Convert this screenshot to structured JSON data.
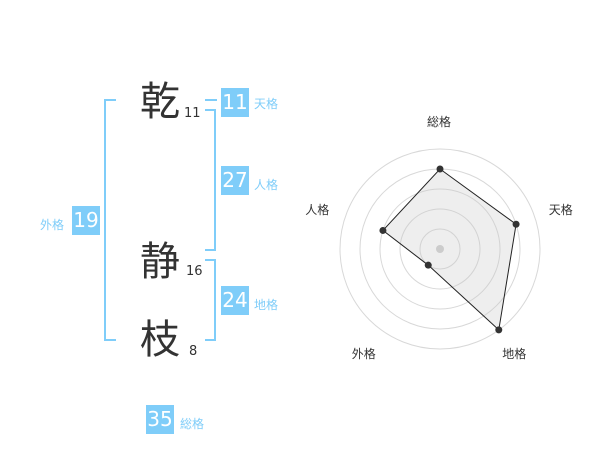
{
  "name": {
    "chars": [
      {
        "char": "乾",
        "strokes": "11"
      },
      {
        "char": "静",
        "strokes": "16"
      },
      {
        "char": "枝",
        "strokes": "8"
      }
    ]
  },
  "grid": {
    "tenkaku": {
      "label": "天格",
      "value": "11"
    },
    "jinkaku": {
      "label": "人格",
      "value": "27"
    },
    "chikaku": {
      "label": "地格",
      "value": "24"
    },
    "gaikaku": {
      "label": "外格",
      "value": "19"
    },
    "soukaku": {
      "label": "総格",
      "value": "35"
    }
  },
  "accent": "#7fcdf9",
  "chart_data": {
    "type": "radar",
    "axes": [
      "総格",
      "天格",
      "地格",
      "外格",
      "人格"
    ],
    "values": [
      4,
      4,
      5,
      1,
      3
    ],
    "range": [
      0,
      5
    ],
    "rings": 5
  }
}
